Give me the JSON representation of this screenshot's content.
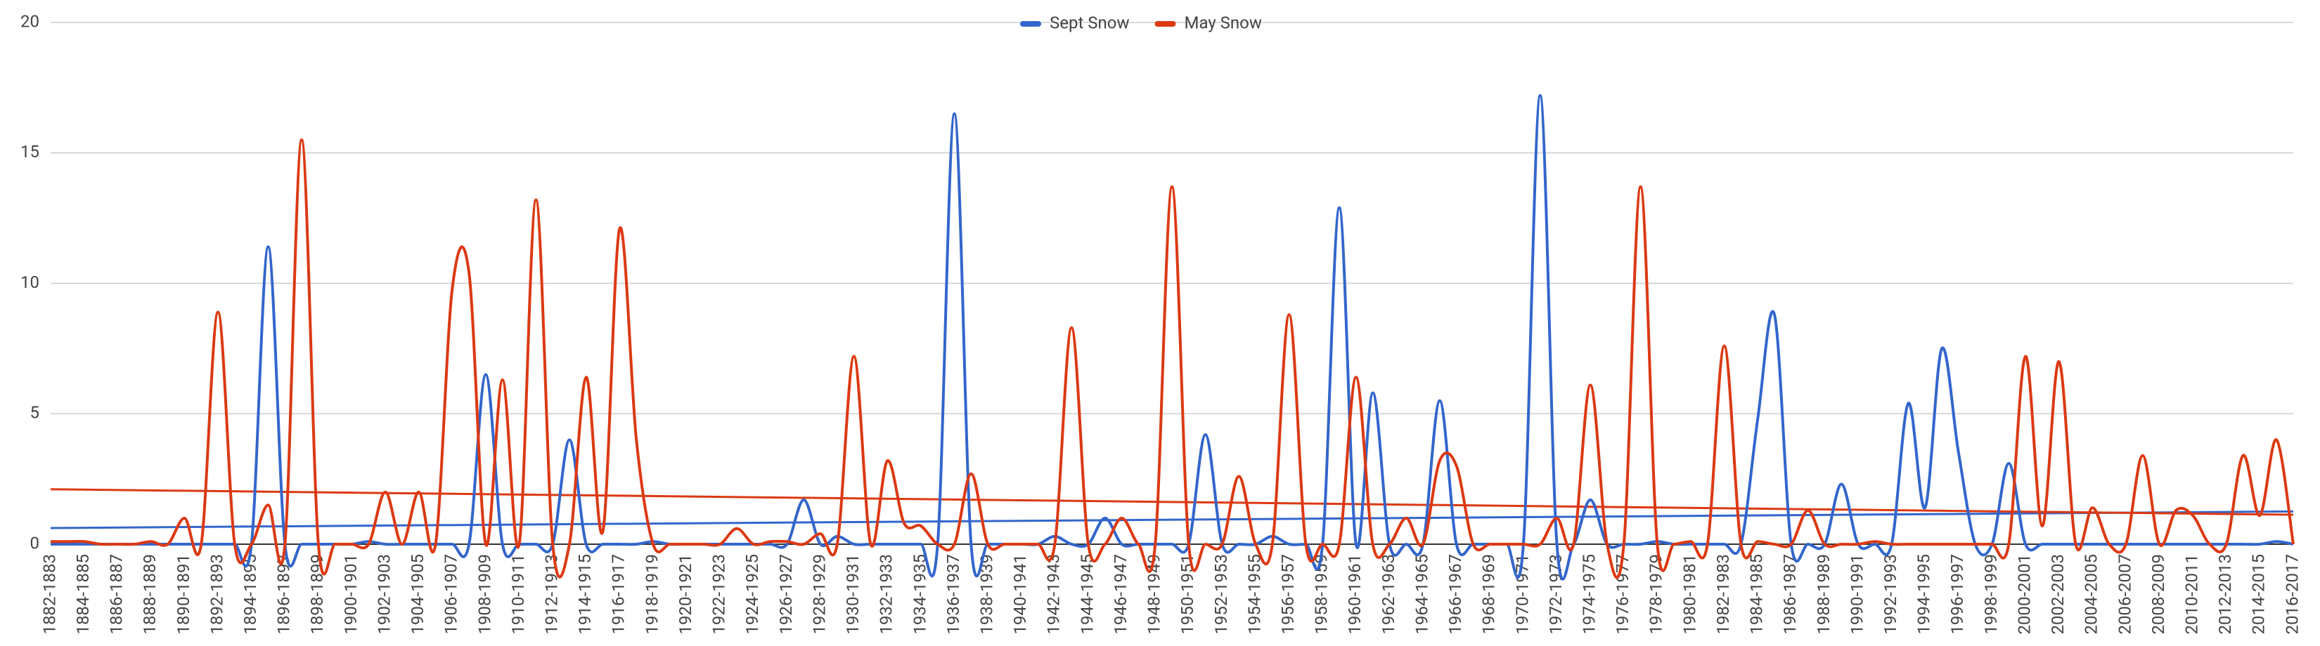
{
  "chart_data": {
    "type": "line",
    "curve": "smooth",
    "trendlines": true,
    "grid": true,
    "legend": "top",
    "categories": [
      "1882-1883",
      null,
      "1884-1885",
      null,
      "1886-1887",
      null,
      "1888-1889",
      null,
      "1890-1891",
      null,
      "1892-1893",
      null,
      "1894-1895",
      null,
      "1896-1897",
      null,
      "1898-1899",
      null,
      "1900-1901",
      null,
      "1902-1903",
      null,
      "1904-1905",
      null,
      "1906-1907",
      null,
      "1908-1909",
      null,
      "1910-1911",
      null,
      "1912-1913",
      null,
      "1914-1915",
      null,
      "1916-1917",
      null,
      "1918-1919",
      null,
      "1920-1921",
      null,
      "1922-1923",
      null,
      "1924-1925",
      null,
      "1926-1927",
      null,
      "1928-1929",
      null,
      "1930-1931",
      null,
      "1932-1933",
      null,
      "1934-1935",
      null,
      "1936-1937",
      null,
      "1938-1939",
      null,
      "1940-1941",
      null,
      "1942-1943",
      null,
      "1944-1945",
      null,
      "1946-1947",
      null,
      "1948-1949",
      null,
      "1950-1951",
      null,
      "1952-1953",
      null,
      "1954-1955",
      null,
      "1956-1957",
      null,
      "1958-1959",
      null,
      "1960-1961",
      null,
      "1962-1963",
      null,
      "1964-1965",
      null,
      "1966-1967",
      null,
      "1968-1969",
      null,
      "1970-1971",
      null,
      "1972-1973",
      null,
      "1974-1975",
      null,
      "1976-1977",
      null,
      "1978-1979",
      null,
      "1980-1981",
      null,
      "1982-1983",
      null,
      "1984-1985",
      null,
      "1986-1987",
      null,
      "1988-1989",
      null,
      "1990-1991",
      null,
      "1992-1993",
      null,
      "1994-1995",
      null,
      "1996-1997",
      null,
      "1998-1999",
      null,
      "2000-2001",
      null,
      "2002-2003",
      null,
      "2004-2005",
      null,
      "2006-2007",
      null,
      "2008-2009",
      null,
      "2010-2011",
      null,
      "2012-2013",
      null,
      "2014-2015",
      null,
      "2016-2017"
    ],
    "series": [
      {
        "name": "Sept Snow",
        "color": "#3366cc",
        "values": [
          0,
          0,
          0,
          0,
          0,
          0,
          0,
          0,
          0,
          0,
          0,
          0,
          0,
          11.4,
          0,
          0,
          0,
          0,
          0,
          0.1,
          0,
          0,
          0,
          0,
          0,
          0,
          6.5,
          0,
          0,
          0,
          0,
          4,
          0,
          0,
          0,
          0,
          0.1,
          0,
          0,
          0,
          0,
          0,
          0,
          0,
          0,
          1.7,
          0,
          0.3,
          0,
          0,
          0,
          0,
          0,
          0,
          16.5,
          0,
          0,
          0,
          0,
          0,
          0.3,
          0,
          0,
          1,
          0,
          0,
          0,
          0,
          0,
          4.2,
          0,
          0,
          0,
          0.3,
          0,
          0,
          0,
          12.9,
          0,
          5.8,
          0,
          0,
          0,
          5.5,
          0,
          0,
          0,
          0,
          0,
          17.2,
          0,
          0,
          1.7,
          0,
          0,
          0,
          0.1,
          0,
          0,
          0,
          0,
          0,
          4.8,
          8.8,
          0,
          0,
          0,
          2.3,
          0,
          0,
          0,
          5.4,
          1.4,
          7.5,
          3.5,
          0,
          0,
          3.1,
          0,
          0,
          0,
          0,
          0,
          0,
          0,
          0,
          0,
          0,
          0,
          0,
          0,
          0,
          0,
          0.1,
          0
        ]
      },
      {
        "name": "May Snow",
        "color": "#dc3912",
        "values": [
          0.1,
          0.1,
          0.1,
          0,
          0,
          0,
          0.1,
          0,
          1,
          0,
          8.9,
          0,
          0,
          1.5,
          0,
          15.5,
          0,
          0,
          0,
          0,
          2,
          0,
          2,
          0,
          9.8,
          10.4,
          0,
          6.3,
          0,
          13.2,
          0,
          0,
          6.4,
          0.5,
          12.1,
          4,
          0,
          0,
          0,
          0,
          0,
          0.6,
          0,
          0.1,
          0.1,
          0,
          0.4,
          0,
          7.2,
          0,
          3.2,
          0.8,
          0.7,
          0,
          0,
          2.7,
          0,
          0,
          0,
          0,
          0,
          8.3,
          0,
          0,
          1,
          0,
          0,
          13.7,
          0,
          0,
          0,
          2.6,
          0,
          0,
          8.8,
          0,
          0,
          0,
          6.4,
          0,
          0,
          1,
          0,
          3.2,
          3,
          0,
          0,
          0,
          0,
          0,
          1,
          0,
          6.1,
          0,
          0,
          13.7,
          0,
          0,
          0.1,
          0,
          7.6,
          0,
          0.1,
          0,
          0,
          1.3,
          0,
          0,
          0,
          0.1,
          0,
          0,
          0,
          0,
          0,
          0,
          0,
          0,
          7.2,
          0.7,
          7,
          0,
          1.4,
          0,
          0,
          3.4,
          0,
          1.3,
          1.1,
          0,
          0,
          3.4,
          1.1,
          4,
          0
        ]
      }
    ],
    "ylim": [
      0,
      20
    ],
    "yticks": [
      0,
      5,
      10,
      15,
      20
    ]
  }
}
